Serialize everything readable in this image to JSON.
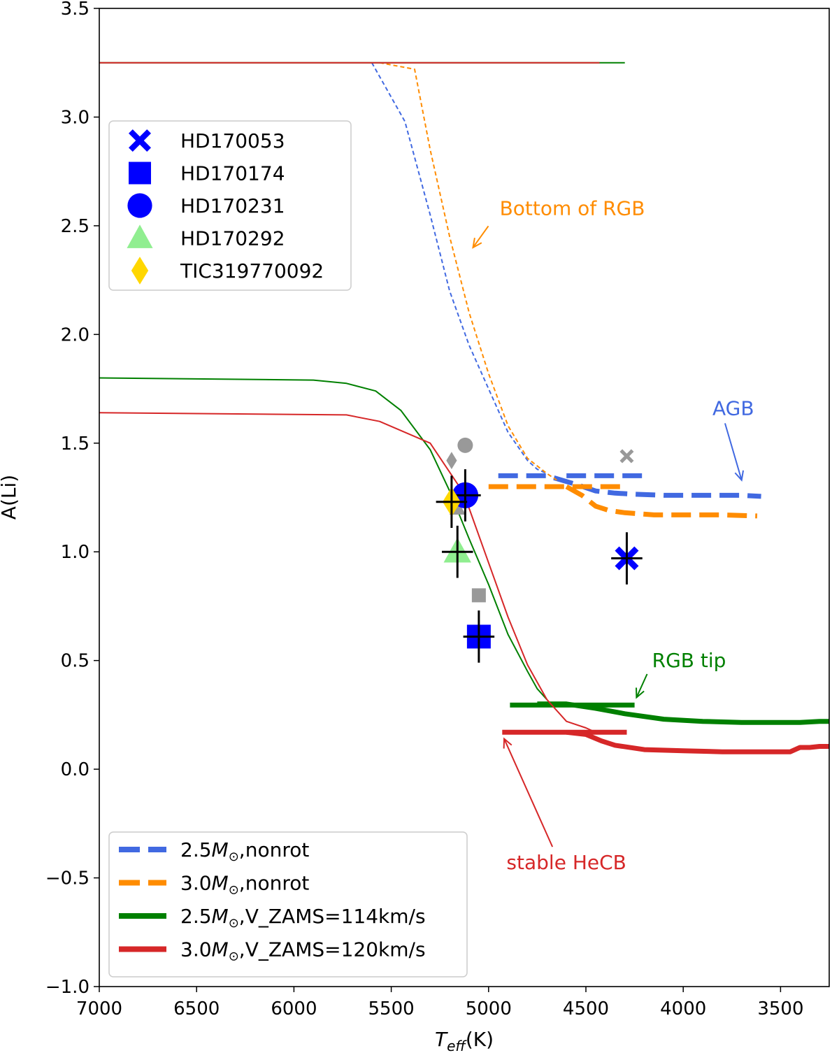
{
  "chart_data": {
    "type": "line",
    "xlabel_main": "T",
    "xlabel_sub": "eff",
    "xlabel_unit": "(K)",
    "ylabel": "A(Li)",
    "xlim": [
      7000,
      3250
    ],
    "ylim": [
      -1.0,
      3.5
    ],
    "x_ticks": [
      7000,
      6500,
      6000,
      5500,
      5000,
      4500,
      4000,
      3500
    ],
    "y_ticks": [
      -1.0,
      -0.5,
      0.0,
      0.5,
      1.0,
      1.5,
      2.0,
      2.5,
      3.0,
      3.5
    ],
    "y_tick_labels": [
      "−1.0",
      "−0.5",
      "0.0",
      "0.5",
      "1.0",
      "1.5",
      "2.0",
      "2.5",
      "3.0",
      "3.5"
    ],
    "series": [
      {
        "name": "2.5M⊙,nonrot",
        "color": "#4169e1",
        "style": "dashed-thin",
        "x": [
          5600,
          5430,
          5300,
          5200,
          5100,
          5000,
          4900,
          4800,
          4750,
          4700
        ],
        "y": [
          3.25,
          2.98,
          2.55,
          2.2,
          1.95,
          1.75,
          1.55,
          1.42,
          1.38,
          1.36
        ]
      },
      {
        "name": "2.5M⊙,nonrot",
        "color": "#4169e1",
        "style": "dashed-thick",
        "x": [
          4950,
          4700,
          4550,
          4450,
          4350,
          4250,
          4100,
          3900,
          3700,
          3600
        ],
        "y": [
          1.35,
          1.35,
          1.31,
          1.28,
          1.27,
          1.265,
          1.26,
          1.26,
          1.26,
          1.255
        ]
      },
      {
        "name": "2.5M⊙,nonrot",
        "color": "#4169e1",
        "style": "dashed-thick",
        "x": [
          4600,
          4180
        ],
        "y": [
          1.35,
          1.35
        ]
      },
      {
        "name": "3.0M⊙,nonrot",
        "color": "#ff8c00",
        "style": "dashed-thin",
        "x": [
          5560,
          5380,
          5300,
          5200,
          5100,
          5000,
          4900,
          4800,
          4700,
          4650
        ],
        "y": [
          3.25,
          3.22,
          2.85,
          2.45,
          2.1,
          1.82,
          1.58,
          1.43,
          1.36,
          1.33
        ]
      },
      {
        "name": "3.0M⊙,nonrot",
        "color": "#ff8c00",
        "style": "dashed-thick",
        "x": [
          5000,
          4700,
          4290
        ],
        "y": [
          1.3,
          1.3,
          1.3
        ]
      },
      {
        "name": "3.0M⊙,nonrot",
        "color": "#ff8c00",
        "style": "dashed-thick",
        "x": [
          4600,
          4520,
          4450,
          4380,
          4300,
          4150,
          4000,
          3800,
          3620
        ],
        "y": [
          1.3,
          1.26,
          1.21,
          1.19,
          1.18,
          1.17,
          1.17,
          1.17,
          1.165
        ]
      },
      {
        "name": "2.5M⊙,V_ZAMS=114km/s",
        "color": "#008000",
        "style": "solid-thin",
        "x": [
          7000,
          5900,
          5730,
          5580,
          5450,
          5300,
          5200,
          5100,
          5000,
          4900,
          4800,
          4750,
          4700
        ],
        "y": [
          1.8,
          1.79,
          1.775,
          1.74,
          1.65,
          1.47,
          1.28,
          1.06,
          0.85,
          0.62,
          0.45,
          0.37,
          0.32
        ]
      },
      {
        "name": "2.5M⊙,V_ZAMS=114km/s",
        "color": "#008000",
        "style": "solid-thin",
        "x": [
          7000,
          4300
        ],
        "y": [
          3.25,
          3.25
        ]
      },
      {
        "name": "2.5M⊙,V_ZAMS=114km/s",
        "color": "#008000",
        "style": "solid-thick",
        "x": [
          4890,
          4250
        ],
        "y": [
          0.295,
          0.295
        ]
      },
      {
        "name": "2.5M⊙,V_ZAMS=114km/s",
        "color": "#008000",
        "style": "solid-thick",
        "x": [
          4750,
          4600,
          4450,
          4300,
          4100,
          3900,
          3700,
          3500,
          3400,
          3300,
          3250
        ],
        "y": [
          0.3,
          0.3,
          0.28,
          0.255,
          0.23,
          0.22,
          0.215,
          0.215,
          0.215,
          0.22,
          0.22
        ]
      },
      {
        "name": "3.0M⊙,V_ZAMS=120km/s",
        "color": "#d62728",
        "style": "solid-thin",
        "x": [
          7000,
          5730,
          5560,
          5300,
          5150,
          5100,
          5000,
          4900,
          4800,
          4700,
          4600,
          4500,
          4450
        ],
        "y": [
          1.64,
          1.63,
          1.6,
          1.5,
          1.3,
          1.2,
          0.95,
          0.7,
          0.48,
          0.32,
          0.22,
          0.19,
          0.17
        ]
      },
      {
        "name": "3.0M⊙,V_ZAMS=120km/s",
        "color": "#d62728",
        "style": "solid-thin",
        "x": [
          7000,
          4430
        ],
        "y": [
          3.25,
          3.25
        ]
      },
      {
        "name": "3.0M⊙,V_ZAMS=120km/s",
        "color": "#d62728",
        "style": "solid-thick",
        "x": [
          4930,
          4290
        ],
        "y": [
          0.17,
          0.17
        ]
      },
      {
        "name": "3.0M⊙,V_ZAMS=120km/s",
        "color": "#d62728",
        "style": "solid-thick",
        "x": [
          4600,
          4500,
          4420,
          4350,
          4200,
          4000,
          3800,
          3600,
          3450,
          3400,
          3350,
          3300,
          3250
        ],
        "y": [
          0.17,
          0.16,
          0.13,
          0.11,
          0.09,
          0.085,
          0.08,
          0.08,
          0.08,
          0.1,
          0.1,
          0.105,
          0.105
        ]
      }
    ],
    "stars": [
      {
        "name": "HD170053",
        "marker": "x",
        "color": "#0000ff",
        "x": 4290,
        "y": 0.97,
        "xerr": 80,
        "yerr": 0.12,
        "prev_x": 4290,
        "prev_y": 1.44
      },
      {
        "name": "HD170174",
        "marker": "square",
        "color": "#0000ff",
        "x": 5050,
        "y": 0.61,
        "xerr": 80,
        "yerr": 0.12,
        "prev_x": 5050,
        "prev_y": 0.8
      },
      {
        "name": "HD170231",
        "marker": "circle",
        "color": "#0000ff",
        "x": 5120,
        "y": 1.26,
        "xerr": 80,
        "yerr": 0.12,
        "prev_x": 5120,
        "prev_y": 1.49
      },
      {
        "name": "HD170292",
        "marker": "triangle",
        "color": "#90ee90",
        "x": 5160,
        "y": 1.0,
        "xerr": 80,
        "yerr": 0.12,
        "prev_x": 5160,
        "prev_y": 1.2
      },
      {
        "name": "TIC319770092",
        "marker": "diamond",
        "color": "#ffd700",
        "x": 5190,
        "y": 1.23,
        "xerr": 80,
        "yerr": 0.12,
        "prev_x": 5190,
        "prev_y": 1.42
      }
    ],
    "annotations": [
      {
        "text": "Bottom of RGB",
        "color": "#ff8c00",
        "text_x": 4570,
        "text_y": 2.55,
        "arrow_x": 5080,
        "arrow_y": 2.4,
        "anchor": "middle"
      },
      {
        "text": "AGB",
        "color": "#4169e1",
        "text_x": 3850,
        "text_y": 1.63,
        "arrow_x": 3700,
        "arrow_y": 1.33,
        "anchor": "start"
      },
      {
        "text": "RGB tip",
        "color": "#008000",
        "text_x": 3970,
        "text_y": 0.47,
        "arrow_x": 4240,
        "arrow_y": 0.33,
        "anchor": "middle"
      },
      {
        "text": "stable HeCB",
        "color": "#d62728",
        "text_x": 4600,
        "text_y": -0.46,
        "arrow_x": 4920,
        "arrow_y": 0.14,
        "anchor": "middle"
      }
    ],
    "legend_markers": {
      "placement": "upper left",
      "entries": [
        "HD170053",
        "HD170174",
        "HD170231",
        "HD170292",
        "TIC319770092"
      ]
    },
    "legend_lines": {
      "placement": "lower left",
      "entries": [
        {
          "label_main": "2.5",
          "label_sym": "M",
          "label_sub": "⊙",
          "label_rest": ",nonrot",
          "color": "#4169e1",
          "style": "dashed"
        },
        {
          "label_main": "3.0",
          "label_sym": "M",
          "label_sub": "⊙",
          "label_rest": ",nonrot",
          "color": "#ff8c00",
          "style": "dashed"
        },
        {
          "label_main": "2.5",
          "label_sym": "M",
          "label_sub": "⊙",
          "label_rest": ",V_ZAMS=114km/s",
          "color": "#008000",
          "style": "solid"
        },
        {
          "label_main": "3.0",
          "label_sym": "M",
          "label_sub": "⊙",
          "label_rest": ",V_ZAMS=120km/s",
          "color": "#d62728",
          "style": "solid"
        }
      ]
    }
  }
}
